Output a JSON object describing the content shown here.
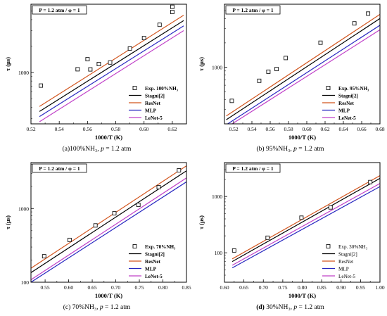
{
  "figure": {
    "panels": [
      {
        "caption": {
          "tag": "(a)",
          "tag_bold": false,
          "text": "100%NH₃, ",
          "pvar": "p",
          "rest": " = 1.2 atm"
        }
      },
      {
        "caption": {
          "tag": "(b)",
          "tag_bold": false,
          "text": " 95%NH₃, ",
          "pvar": "p",
          "rest": " = 1.2 atm"
        }
      },
      {
        "caption": {
          "tag": "(c)",
          "tag_bold": false,
          "text": " 70%NH₃, ",
          "pvar": "p",
          "rest": " = 1.2 atm"
        }
      },
      {
        "caption": {
          "tag": "(d)",
          "tag_bold": true,
          "text": " 30%NH₃, ",
          "pvar": "p",
          "rest": " = 1.2 atm"
        }
      }
    ]
  },
  "chart_data": [
    {
      "type": "line",
      "condition_label": "P = 1.2 atm / φ = 1",
      "xlabel": "1000/T (K)",
      "ylabel": "τ (μs)",
      "xlim": [
        0.52,
        0.63
      ],
      "xticks": [
        0.52,
        0.54,
        0.56,
        0.58,
        0.6,
        0.62
      ],
      "ylim": [
        260,
        6000
      ],
      "yscale": "log",
      "yticks": [
        1000
      ],
      "grid": false,
      "legend_position": "bottom-right",
      "legend_bold": true,
      "series": [
        {
          "name": "Exp. 100%NH₃",
          "kind": "scatter",
          "color": "#111111",
          "x": [
            0.527,
            0.553,
            0.56,
            0.562,
            0.568,
            0.576,
            0.59,
            0.6,
            0.611,
            0.62,
            0.62
          ],
          "y": [
            710,
            1090,
            1420,
            1085,
            1250,
            1300,
            1880,
            2470,
            3500,
            4900,
            5600
          ]
        },
        {
          "name": "Stagni[2]",
          "kind": "line",
          "color": "#000000",
          "x": [
            0.526,
            0.628
          ],
          "y": [
            360,
            3900
          ]
        },
        {
          "name": "ResNet",
          "kind": "line",
          "color": "#d2551e",
          "x": [
            0.526,
            0.628
          ],
          "y": [
            410,
            4500
          ]
        },
        {
          "name": "MLP",
          "kind": "line",
          "color": "#2626c0",
          "x": [
            0.526,
            0.628
          ],
          "y": [
            315,
            3400
          ]
        },
        {
          "name": "LeNet-5",
          "kind": "line",
          "color": "#c040c8",
          "x": [
            0.526,
            0.628
          ],
          "y": [
            275,
            3000
          ]
        }
      ]
    },
    {
      "type": "line",
      "condition_label": "P = 1.2 atm / φ = 1",
      "xlabel": "1000/T (K)",
      "ylabel": "τ (μs)",
      "xlim": [
        0.51,
        0.68
      ],
      "xticks": [
        0.52,
        0.54,
        0.56,
        0.58,
        0.6,
        0.62,
        0.64,
        0.66,
        0.68
      ],
      "ylim": [
        200,
        6000
      ],
      "yscale": "log",
      "yticks": [
        1000
      ],
      "grid": false,
      "legend_position": "bottom-right",
      "legend_bold": true,
      "series": [
        {
          "name": "Exp. 95%NH₃",
          "kind": "scatter",
          "color": "#111111",
          "x": [
            0.518,
            0.548,
            0.558,
            0.567,
            0.577,
            0.615,
            0.652,
            0.667
          ],
          "y": [
            385,
            680,
            880,
            950,
            1300,
            2010,
            3480,
            4600
          ]
        },
        {
          "name": "Stagni[2]",
          "kind": "line",
          "color": "#000000",
          "x": [
            0.512,
            0.68
          ],
          "y": [
            225,
            4000
          ]
        },
        {
          "name": "ResNet",
          "kind": "line",
          "color": "#d2551e",
          "x": [
            0.512,
            0.68
          ],
          "y": [
            250,
            4500
          ]
        },
        {
          "name": "MLP",
          "kind": "line",
          "color": "#2626c0",
          "x": [
            0.512,
            0.68
          ],
          "y": [
            195,
            3300
          ]
        },
        {
          "name": "LeNet-5",
          "kind": "line",
          "color": "#c040c8",
          "x": [
            0.512,
            0.68
          ],
          "y": [
            180,
            2900
          ]
        }
      ]
    },
    {
      "type": "line",
      "condition_label": "P = 1.2 atm / φ = 1",
      "xlabel": "1000/T (K)",
      "ylabel": "τ (μs)",
      "xlim": [
        0.52,
        0.85
      ],
      "xticks": [
        0.55,
        0.6,
        0.65,
        0.7,
        0.75,
        0.8,
        0.85
      ],
      "ylim": [
        100,
        4200
      ],
      "yscale": "log",
      "yticks": [
        100,
        1000
      ],
      "grid": false,
      "legend_position": "bottom-right",
      "legend_bold": true,
      "series": [
        {
          "name": "Exp. 70%NH₃",
          "kind": "scatter",
          "color": "#111111",
          "x": [
            0.548,
            0.602,
            0.657,
            0.697,
            0.748,
            0.791,
            0.834
          ],
          "y": [
            225,
            375,
            590,
            860,
            1120,
            1950,
            3300
          ]
        },
        {
          "name": "Stagni[2]",
          "kind": "line",
          "color": "#000000",
          "x": [
            0.52,
            0.85
          ],
          "y": [
            135,
            3250
          ]
        },
        {
          "name": "ResNet",
          "kind": "line",
          "color": "#d2551e",
          "x": [
            0.52,
            0.85
          ],
          "y": [
            155,
            3800
          ]
        },
        {
          "name": "MLP",
          "kind": "line",
          "color": "#2626c0",
          "x": [
            0.52,
            0.85
          ],
          "y": [
            100,
            2300
          ]
        },
        {
          "name": "LeNet-5",
          "kind": "line",
          "color": "#c040c8",
          "x": [
            0.52,
            0.85
          ],
          "y": [
            108,
            2600
          ]
        }
      ]
    },
    {
      "type": "line",
      "condition_label": "P = 1.2 atm / φ = 1",
      "xlabel": "1000/T (K)",
      "ylabel": "τ (μs)",
      "xlim": [
        0.6,
        1.0
      ],
      "xticks": [
        0.6,
        0.65,
        0.7,
        0.75,
        0.8,
        0.85,
        0.9,
        0.95,
        1.0
      ],
      "ylim": [
        30,
        4000
      ],
      "yscale": "log",
      "yticks": [
        100,
        1000
      ],
      "grid": false,
      "legend_position": "bottom-right",
      "legend_bold": false,
      "series": [
        {
          "name": "Exp. 30%NH₃",
          "kind": "scatter",
          "color": "#111111",
          "x": [
            0.625,
            0.711,
            0.798,
            0.873,
            0.975
          ],
          "y": [
            110,
            185,
            420,
            640,
            1800
          ]
        },
        {
          "name": "Stagni[2]",
          "kind": "line",
          "color": "#000000",
          "x": [
            0.62,
            1.0
          ],
          "y": [
            70,
            2100
          ]
        },
        {
          "name": "ResNet",
          "kind": "line",
          "color": "#d2551e",
          "x": [
            0.62,
            1.0
          ],
          "y": [
            78,
            2350
          ]
        },
        {
          "name": "MLP",
          "kind": "line",
          "color": "#2626c0",
          "x": [
            0.62,
            1.0
          ],
          "y": [
            54,
            1500
          ]
        },
        {
          "name": "LeNet-5",
          "kind": "line",
          "color": "#c040c8",
          "x": [
            0.62,
            1.0
          ],
          "y": [
            60,
            1700
          ]
        }
      ]
    }
  ]
}
